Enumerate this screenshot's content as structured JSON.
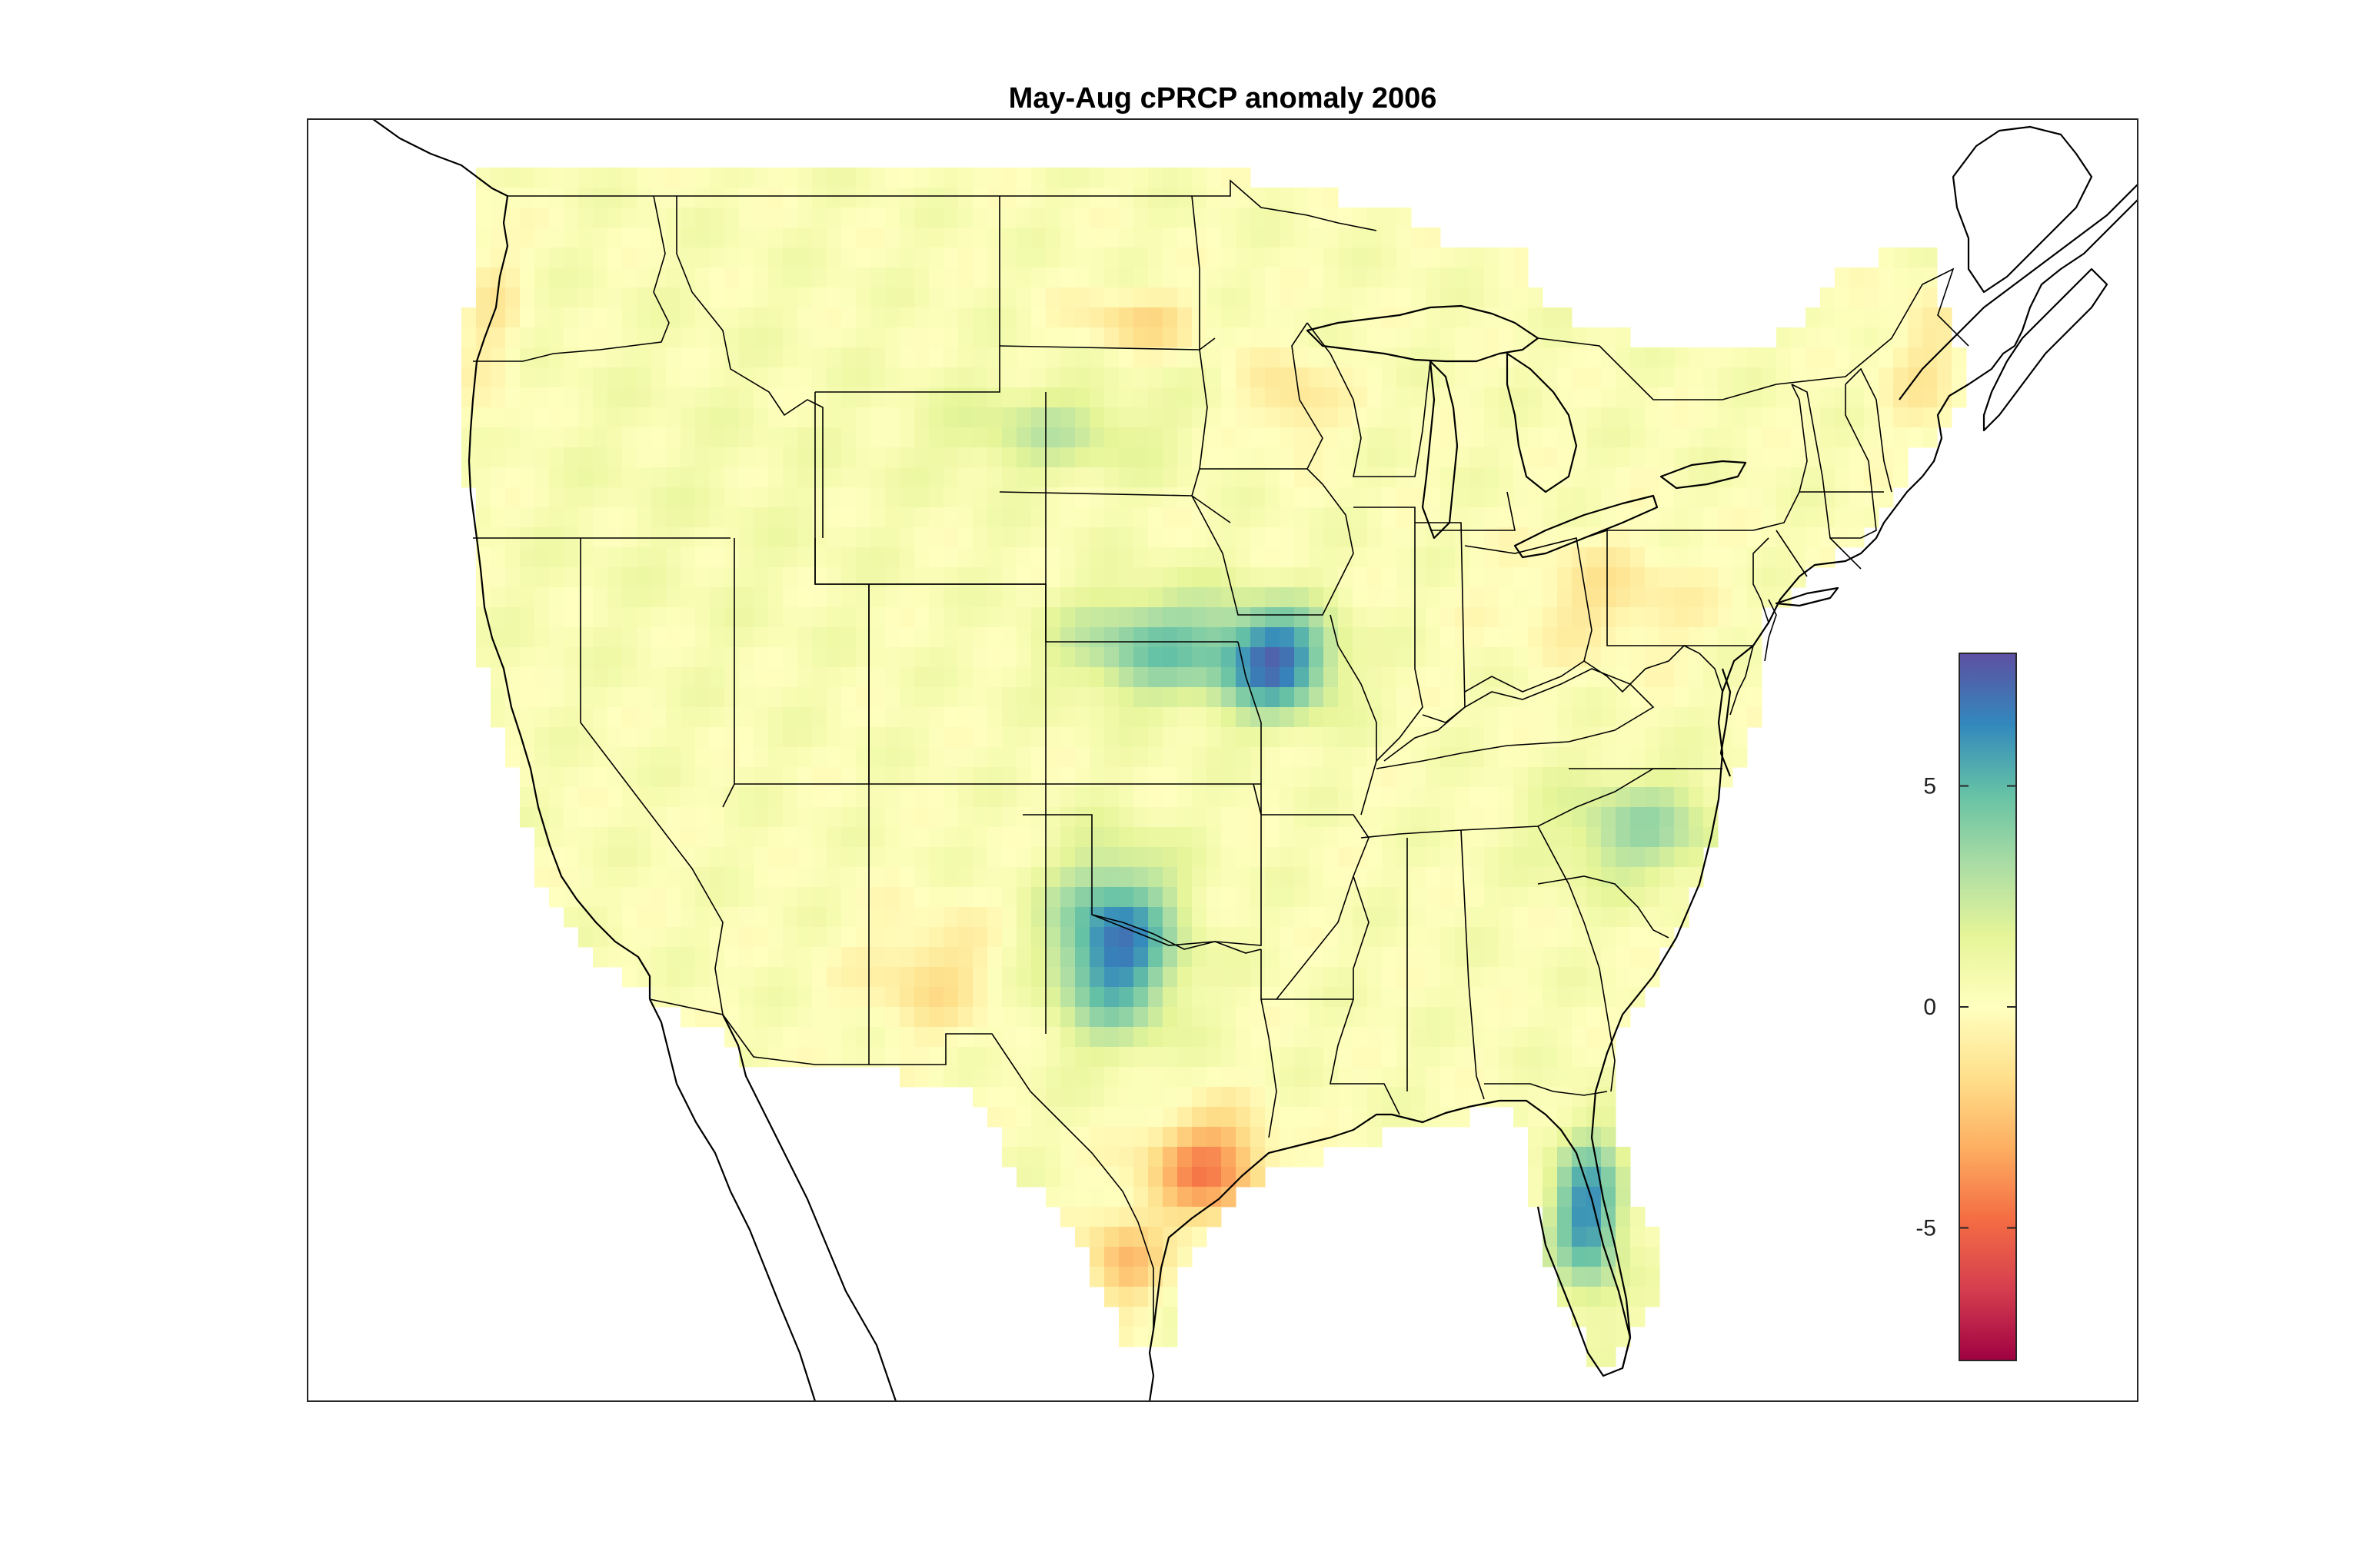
{
  "figure": {
    "title": "May-Aug cPRCP anomaly 2006"
  },
  "colorbar": {
    "range": [
      -8,
      8
    ],
    "ticks": [
      {
        "value": 5,
        "label": "5"
      },
      {
        "value": 0,
        "label": "0"
      },
      {
        "value": -5,
        "label": "-5"
      }
    ],
    "colormap": [
      "#9e0142",
      "#d53e4f",
      "#f46d43",
      "#fdae61",
      "#fee08b",
      "#ffffbf",
      "#e6f598",
      "#abdda4",
      "#66c2a5",
      "#3288bd",
      "#5e4fa2"
    ]
  },
  "chart_data": {
    "type": "heatmap",
    "title": "May-Aug cPRCP anomaly 2006",
    "value_range": [
      -8,
      8
    ],
    "region": "contiguous United States",
    "anomaly_areas": [
      {
        "area": "Iowa / northern Missouri",
        "anomaly": 6.5
      },
      {
        "area": "Oklahoma / north Texas",
        "anomaly": 6.5
      },
      {
        "area": "Kansas",
        "anomaly": 4.0
      },
      {
        "area": "central Florida",
        "anomaly": 6.0
      },
      {
        "area": "North Carolina / Virginia",
        "anomaly": 3.0
      },
      {
        "area": "Nebraska",
        "anomaly": 2.0
      },
      {
        "area": "Texas Gulf coast",
        "anomaly": -4.5
      },
      {
        "area": "south Texas",
        "anomaly": -3.0
      },
      {
        "area": "North Dakota / South Dakota border",
        "anomaly": -2.0
      },
      {
        "area": "southern Minnesota",
        "anomaly": -1.8
      },
      {
        "area": "New Mexico / west Texas",
        "anomaly": -1.8
      },
      {
        "area": "Ohio / Pennsylvania / New York",
        "anomaly": -1.5
      },
      {
        "area": "Maine",
        "anomaly": -1.3
      },
      {
        "area": "Pacific Northwest coast",
        "anomaly": -1.2
      },
      {
        "area": "Great Basin / interior West",
        "anomaly": 0.3
      }
    ]
  }
}
